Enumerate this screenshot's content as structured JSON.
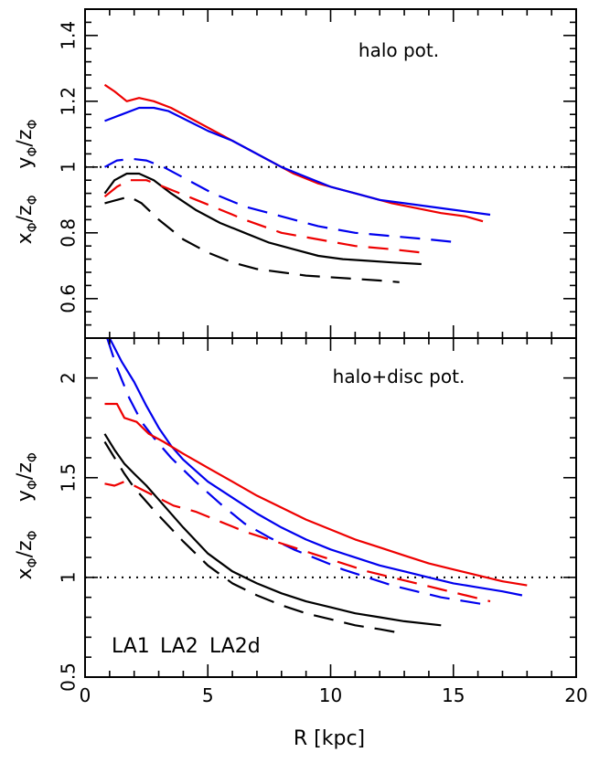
{
  "chart_data": {
    "type": "line",
    "xlabel": "R [kpc]",
    "xlim": [
      0,
      20
    ],
    "x_ticks": [
      0,
      5,
      10,
      15,
      20
    ],
    "legend": {
      "placement": "bottom-left of lower panel",
      "entries": [
        {
          "label": "LA1",
          "color": "#000000"
        },
        {
          "label": "LA2",
          "color": "#0000ee"
        },
        {
          "label": "LA2d",
          "color": "#ee0000"
        }
      ]
    },
    "line_styles": {
      "solid": "y_phi/z_phi",
      "dashed": "x_phi/z_phi"
    },
    "panels": [
      {
        "id": "top",
        "annotation": "halo pot.",
        "ylim": [
          0.48,
          1.48
        ],
        "y_ticks": [
          0.6,
          0.8,
          1,
          1.2,
          1.4
        ],
        "y_tick_labels": [
          "0.6",
          "0.8",
          "1",
          "1.2",
          "1.4"
        ],
        "ylabel_upper": {
          "main": "y",
          "sub1": "Φ",
          "slash": "/z",
          "sub2": "Φ"
        },
        "ylabel_lower": {
          "main": "x",
          "sub1": "Φ",
          "slash": "/z",
          "sub2": "Φ"
        },
        "reference_line": 1,
        "series": [
          {
            "model": "LA2d",
            "ratio": "y/z",
            "color": "#ee0000",
            "style": "solid",
            "x": [
              0.8,
              1.2,
              1.7,
              2.2,
              2.8,
              3.5,
              4.5,
              5.5,
              6.5,
              7.5,
              8.5,
              9.5,
              10.5,
              11.5,
              12.5,
              13.5,
              14.5,
              15.5,
              16.2
            ],
            "y": [
              1.25,
              1.23,
              1.2,
              1.21,
              1.2,
              1.18,
              1.14,
              1.1,
              1.06,
              1.02,
              0.98,
              0.95,
              0.93,
              0.91,
              0.89,
              0.875,
              0.86,
              0.85,
              0.835
            ]
          },
          {
            "model": "LA2",
            "ratio": "y/z",
            "color": "#0000ee",
            "style": "solid",
            "x": [
              0.8,
              1.5,
              2.2,
              2.8,
              3.4,
              4.2,
              5.0,
              6.0,
              7.0,
              8.0,
              9.0,
              10.0,
              11.0,
              12.0,
              13.0,
              14.0,
              15.0,
              16.5
            ],
            "y": [
              1.14,
              1.16,
              1.18,
              1.18,
              1.17,
              1.14,
              1.11,
              1.08,
              1.04,
              1.0,
              0.97,
              0.94,
              0.92,
              0.9,
              0.89,
              0.88,
              0.87,
              0.855
            ]
          },
          {
            "model": "LA1",
            "ratio": "y/z",
            "color": "#000000",
            "style": "solid",
            "x": [
              0.8,
              1.2,
              1.7,
              2.2,
              2.8,
              3.5,
              4.5,
              5.5,
              6.5,
              7.5,
              8.5,
              9.5,
              10.5,
              11.5,
              12.5,
              13.7
            ],
            "y": [
              0.92,
              0.96,
              0.98,
              0.98,
              0.96,
              0.92,
              0.87,
              0.83,
              0.8,
              0.77,
              0.75,
              0.73,
              0.72,
              0.715,
              0.71,
              0.705
            ]
          },
          {
            "model": "LA2",
            "ratio": "x/z",
            "color": "#0000ee",
            "style": "dashed",
            "x": [
              0.8,
              1.3,
              1.9,
              2.5,
              3.2,
              4.2,
              5.2,
              6.5,
              8.0,
              9.5,
              11.0,
              12.5,
              14.0,
              15.3
            ],
            "y": [
              1.0,
              1.02,
              1.025,
              1.02,
              1.0,
              0.96,
              0.92,
              0.88,
              0.85,
              0.82,
              0.8,
              0.79,
              0.78,
              0.77
            ]
          },
          {
            "model": "LA2d",
            "ratio": "x/z",
            "color": "#ee0000",
            "style": "dashed",
            "x": [
              0.8,
              1.3,
              1.8,
              2.5,
              3.2,
              4.2,
              5.2,
              6.5,
              8.0,
              9.5,
              11.0,
              12.5,
              13.7
            ],
            "y": [
              0.91,
              0.94,
              0.96,
              0.96,
              0.94,
              0.91,
              0.88,
              0.84,
              0.8,
              0.78,
              0.76,
              0.75,
              0.74
            ]
          },
          {
            "model": "LA1",
            "ratio": "x/z",
            "color": "#000000",
            "style": "dashed",
            "x": [
              0.8,
              1.3,
              1.8,
              2.3,
              3.0,
              4.0,
              5.0,
              6.0,
              7.0,
              8.0,
              9.0,
              10.0,
              11.0,
              12.0,
              12.8
            ],
            "y": [
              0.89,
              0.9,
              0.91,
              0.89,
              0.84,
              0.78,
              0.74,
              0.71,
              0.69,
              0.68,
              0.67,
              0.665,
              0.66,
              0.655,
              0.65
            ]
          }
        ]
      },
      {
        "id": "bottom",
        "annotation": "halo+disc pot.",
        "ylim": [
          0.5,
          2.2
        ],
        "y_ticks": [
          0.5,
          1,
          1.5,
          2
        ],
        "y_tick_labels": [
          "0.5",
          "1",
          "1.5",
          "2"
        ],
        "ylabel_upper": {
          "main": "y",
          "sub1": "Φ",
          "slash": "/z",
          "sub2": "Φ"
        },
        "ylabel_lower": {
          "main": "x",
          "sub1": "Φ",
          "slash": "/z",
          "sub2": "Φ"
        },
        "reference_line": 1,
        "series": [
          {
            "model": "LA2",
            "ratio": "y/z",
            "color": "#0000ee",
            "style": "solid",
            "x": [
              1.0,
              1.5,
              2.0,
              2.5,
              3.0,
              3.5,
              4.0,
              5.0,
              6.0,
              7.0,
              8.0,
              9.0,
              10.0,
              11.0,
              12.0,
              13.0,
              14.0,
              15.0,
              16.0,
              17.0,
              17.8
            ],
            "y": [
              2.2,
              2.08,
              1.98,
              1.86,
              1.75,
              1.66,
              1.59,
              1.48,
              1.4,
              1.32,
              1.25,
              1.19,
              1.14,
              1.1,
              1.06,
              1.03,
              1.0,
              0.97,
              0.95,
              0.93,
              0.91
            ]
          },
          {
            "model": "LA2",
            "ratio": "x/z",
            "color": "#0000ee",
            "style": "dashed",
            "x": [
              0.9,
              1.3,
              1.8,
              2.3,
              2.8,
              3.5,
              4.5,
              5.5,
              6.5,
              7.5,
              8.5,
              9.5,
              10.5,
              11.5,
              12.5,
              13.5,
              14.5,
              15.5,
              16.5
            ],
            "y": [
              2.2,
              2.05,
              1.9,
              1.78,
              1.7,
              1.6,
              1.48,
              1.37,
              1.27,
              1.2,
              1.14,
              1.09,
              1.04,
              1.0,
              0.96,
              0.93,
              0.9,
              0.88,
              0.86
            ]
          },
          {
            "model": "LA2d",
            "ratio": "y/z",
            "color": "#ee0000",
            "style": "solid",
            "x": [
              0.8,
              1.3,
              1.6,
              2.1,
              2.6,
              3.2,
              4.0,
              5.0,
              6.0,
              7.0,
              8.0,
              9.0,
              10.0,
              11.0,
              12.0,
              13.0,
              14.0,
              15.0,
              16.0,
              17.0,
              18.0
            ],
            "y": [
              1.87,
              1.87,
              1.8,
              1.78,
              1.72,
              1.68,
              1.62,
              1.55,
              1.48,
              1.41,
              1.35,
              1.29,
              1.24,
              1.19,
              1.15,
              1.11,
              1.07,
              1.04,
              1.01,
              0.98,
              0.96
            ]
          },
          {
            "model": "LA2d",
            "ratio": "x/z",
            "color": "#ee0000",
            "style": "dashed",
            "x": [
              0.8,
              1.2,
              1.6,
              2.0,
              2.8,
              3.6,
              4.5,
              5.5,
              6.5,
              7.5,
              8.5,
              9.5,
              10.5,
              11.5,
              12.5,
              13.5,
              14.5,
              15.5,
              16.5
            ],
            "y": [
              1.47,
              1.46,
              1.48,
              1.46,
              1.41,
              1.36,
              1.33,
              1.28,
              1.23,
              1.19,
              1.15,
              1.11,
              1.07,
              1.03,
              1.0,
              0.97,
              0.94,
              0.91,
              0.88
            ]
          },
          {
            "model": "LA1",
            "ratio": "y/z",
            "color": "#000000",
            "style": "solid",
            "x": [
              0.8,
              1.2,
              1.6,
              2.0,
              2.5,
              3.0,
              4.0,
              5.0,
              6.0,
              7.0,
              8.0,
              9.0,
              10.0,
              11.0,
              12.0,
              13.0,
              14.5
            ],
            "y": [
              1.72,
              1.64,
              1.57,
              1.52,
              1.46,
              1.39,
              1.25,
              1.12,
              1.03,
              0.97,
              0.92,
              0.88,
              0.85,
              0.82,
              0.8,
              0.78,
              0.76
            ]
          },
          {
            "model": "LA1",
            "ratio": "x/z",
            "color": "#000000",
            "style": "dashed",
            "x": [
              0.8,
              1.2,
              1.6,
              2.0,
              2.5,
              3.0,
              4.0,
              5.0,
              6.0,
              7.0,
              8.0,
              9.0,
              10.0,
              11.0,
              12.0,
              12.9
            ],
            "y": [
              1.68,
              1.6,
              1.52,
              1.45,
              1.38,
              1.31,
              1.18,
              1.06,
              0.97,
              0.91,
              0.86,
              0.82,
              0.79,
              0.76,
              0.74,
              0.72
            ]
          }
        ]
      }
    ]
  }
}
